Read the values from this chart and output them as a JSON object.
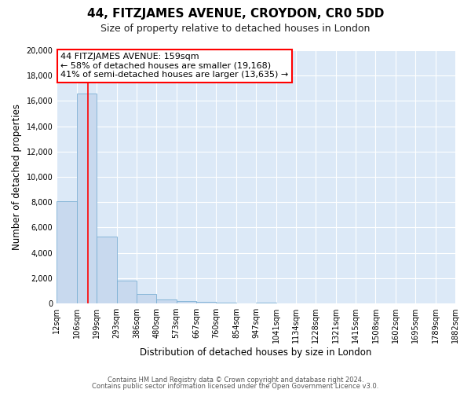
{
  "title": "44, FITZJAMES AVENUE, CROYDON, CR0 5DD",
  "subtitle": "Size of property relative to detached houses in London",
  "xlabel": "Distribution of detached houses by size in London",
  "ylabel": "Number of detached properties",
  "bar_color": "#c8d9ee",
  "bar_edge_color": "#7bafd4",
  "figure_bg_color": "#ffffff",
  "plot_bg_color": "#dce9f7",
  "bin_edges": [
    12,
    106,
    199,
    293,
    386,
    480,
    573,
    667,
    760,
    854,
    947,
    1041,
    1134,
    1228,
    1321,
    1415,
    1508,
    1602,
    1695,
    1789,
    1882
  ],
  "bin_labels": [
    "12sqm",
    "106sqm",
    "199sqm",
    "293sqm",
    "386sqm",
    "480sqm",
    "573sqm",
    "667sqm",
    "760sqm",
    "854sqm",
    "947sqm",
    "1041sqm",
    "1134sqm",
    "1228sqm",
    "1321sqm",
    "1415sqm",
    "1508sqm",
    "1602sqm",
    "1695sqm",
    "1789sqm",
    "1882sqm"
  ],
  "bar_heights": [
    8050,
    16600,
    5300,
    1800,
    780,
    310,
    170,
    110,
    60,
    0,
    60,
    0,
    0,
    0,
    0,
    0,
    0,
    0,
    0,
    0
  ],
  "red_line_x": 159,
  "annotation_title": "44 FITZJAMES AVENUE: 159sqm",
  "annotation_line1": "← 58% of detached houses are smaller (19,168)",
  "annotation_line2": "41% of semi-detached houses are larger (13,635) →",
  "ylim": [
    0,
    20000
  ],
  "yticks": [
    0,
    2000,
    4000,
    6000,
    8000,
    10000,
    12000,
    14000,
    16000,
    18000,
    20000
  ],
  "footer1": "Contains HM Land Registry data © Crown copyright and database right 2024.",
  "footer2": "Contains public sector information licensed under the Open Government Licence v3.0.",
  "grid_color": "#ffffff",
  "title_fontsize": 11,
  "subtitle_fontsize": 9,
  "axis_label_fontsize": 8.5,
  "tick_fontsize": 7,
  "annotation_fontsize": 8,
  "footer_fontsize": 6
}
